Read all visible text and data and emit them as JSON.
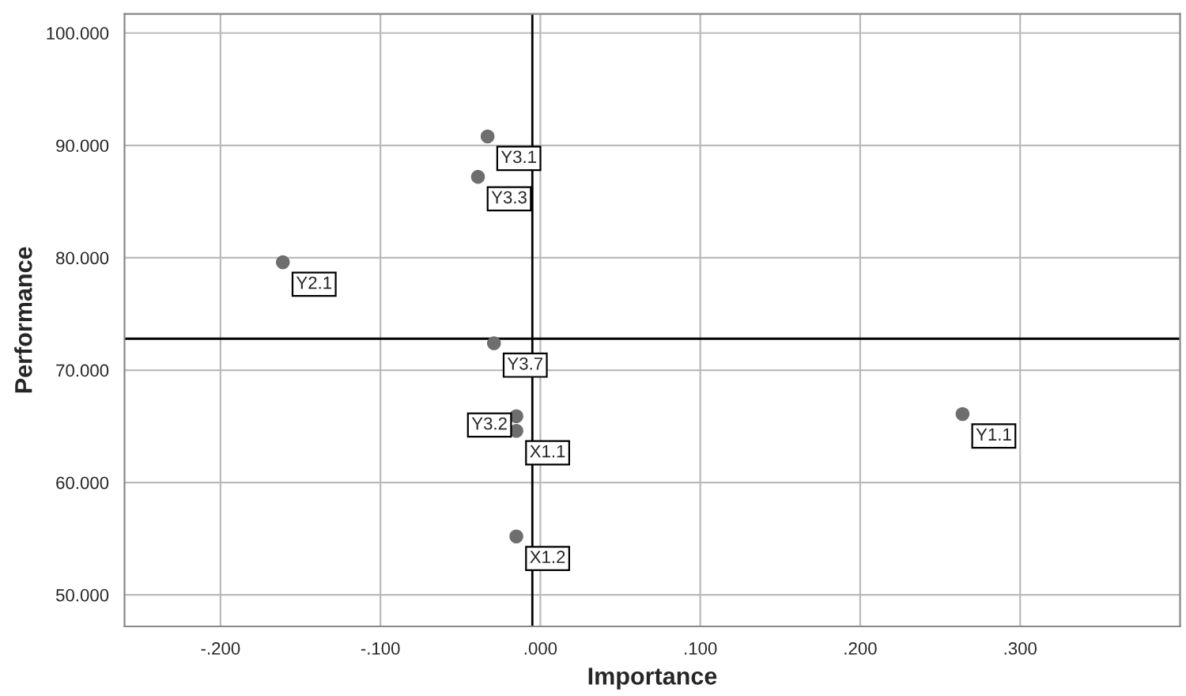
{
  "chart_data": {
    "type": "scatter",
    "xlabel": "Importance",
    "ylabel": "Performance",
    "x": [
      -0.033,
      -0.039,
      -0.161,
      -0.029,
      -0.015,
      -0.015,
      -0.015,
      0.264
    ],
    "values": [
      90.8,
      87.2,
      79.6,
      72.4,
      65.9,
      64.6,
      55.2,
      66.1
    ],
    "color": "#6e6e6e",
    "marker": "circle",
    "annotations": [
      {
        "text": "Y3.1",
        "x": -0.033,
        "y": 90.8
      },
      {
        "text": "Y3.3",
        "x": -0.039,
        "y": 87.2
      },
      {
        "text": "Y2.1",
        "x": -0.161,
        "y": 79.6
      },
      {
        "text": "Y3.7",
        "x": -0.029,
        "y": 72.4
      },
      {
        "text": "Y3.2",
        "x": -0.015,
        "y": 65.9
      },
      {
        "text": "X1.1",
        "x": -0.015,
        "y": 64.6
      },
      {
        "text": "X1.2",
        "x": -0.015,
        "y": 55.2
      },
      {
        "text": "Y1.1",
        "x": 0.264,
        "y": 66.1
      }
    ],
    "ref_lines": [
      {
        "axis": "x",
        "value": -0.005,
        "color": "#000000"
      },
      {
        "axis": "y",
        "value": 72.8,
        "color": "#000000"
      }
    ],
    "xlim": [
      -0.26,
      0.4
    ],
    "ylim": [
      47.2,
      101.7
    ],
    "xticks": [
      {
        "value": -0.2,
        "label": "-.200"
      },
      {
        "value": -0.1,
        "label": "-.100"
      },
      {
        "value": 0,
        "label": ".000"
      },
      {
        "value": 0.1,
        "label": ".100"
      },
      {
        "value": 0.2,
        "label": ".200"
      },
      {
        "value": 0.3,
        "label": ".300"
      }
    ],
    "yticks": [
      {
        "value": 50,
        "label": "50.000"
      },
      {
        "value": 60,
        "label": "60.000"
      },
      {
        "value": 70,
        "label": "70.000"
      },
      {
        "value": 80,
        "label": "80.000"
      },
      {
        "value": 90,
        "label": "90.000"
      },
      {
        "value": 100,
        "label": "100.000"
      }
    ],
    "grid": true
  }
}
